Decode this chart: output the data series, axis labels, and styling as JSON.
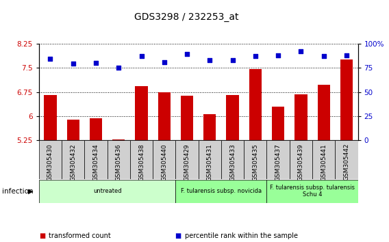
{
  "title": "GDS3298 / 232253_at",
  "samples": [
    "GSM305430",
    "GSM305432",
    "GSM305434",
    "GSM305436",
    "GSM305438",
    "GSM305440",
    "GSM305429",
    "GSM305431",
    "GSM305433",
    "GSM305435",
    "GSM305437",
    "GSM305439",
    "GSM305441",
    "GSM305442"
  ],
  "bar_values": [
    6.65,
    5.9,
    5.93,
    5.28,
    6.93,
    6.73,
    6.63,
    6.07,
    6.66,
    7.47,
    6.3,
    6.68,
    6.97,
    7.75
  ],
  "dot_values": [
    84,
    79,
    80,
    75,
    87,
    81,
    89,
    83,
    83,
    87,
    88,
    92,
    87,
    88
  ],
  "ylim_left": [
    5.25,
    8.25
  ],
  "ylim_right": [
    0,
    100
  ],
  "yticks_left": [
    5.25,
    6.0,
    6.75,
    7.5,
    8.25
  ],
  "yticks_right": [
    0,
    25,
    50,
    75,
    100
  ],
  "ytick_labels_left": [
    "5.25",
    "6",
    "6.75",
    "7.5",
    "8.25"
  ],
  "ytick_labels_right": [
    "0",
    "25",
    "50",
    "75",
    "100%"
  ],
  "bar_color": "#cc0000",
  "dot_color": "#0000cc",
  "groups": [
    {
      "label": "untreated",
      "start": 0,
      "end": 6,
      "color": "#ccffcc"
    },
    {
      "label": "F. tularensis subsp. novicida",
      "start": 6,
      "end": 10,
      "color": "#99ff99"
    },
    {
      "label": "F. tularensis subsp. tularensis\nSchu 4",
      "start": 10,
      "end": 14,
      "color": "#99ff99"
    }
  ],
  "infection_label": "infection",
  "legend_items": [
    {
      "label": "transformed count",
      "color": "#cc0000"
    },
    {
      "label": "percentile rank within the sample",
      "color": "#0000cc"
    }
  ],
  "xtick_bg": "#d0d0d0",
  "grid_color": "black",
  "grid_linestyle": ":"
}
